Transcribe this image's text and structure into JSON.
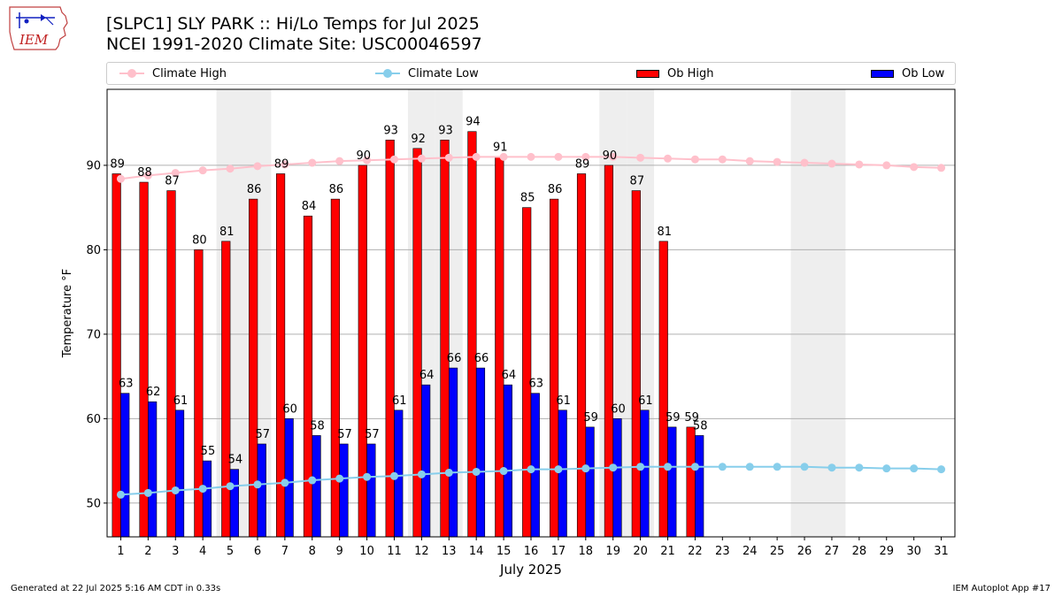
{
  "logo": {
    "text": "IEM"
  },
  "header": {
    "title_line1": "[SLPC1] SLY PARK :: Hi/Lo Temps for Jul 2025",
    "title_line2": "NCEI 1991-2020 Climate Site: USC00046597"
  },
  "colors": {
    "ob_high": "#ff0000",
    "ob_low": "#0000ff",
    "climate_high": "#ffc0cb",
    "climate_low": "#87ceeb",
    "weekend_shade": "#eeeeee",
    "grid": "#b0b0b0"
  },
  "legend": {
    "climate_high": "Climate High",
    "climate_low": "Climate Low",
    "ob_high": "Ob High",
    "ob_low": "Ob Low"
  },
  "footer": {
    "left": "Generated at 22 Jul 2025 5:16 AM CDT in 0.33s",
    "right": "IEM Autoplot App #17"
  },
  "chart_data": {
    "type": "bar",
    "xlabel": "July 2025",
    "ylabel": "Temperature °F",
    "ylim": [
      46,
      99
    ],
    "yticks": [
      50,
      60,
      70,
      80,
      90
    ],
    "grid": "horizontal",
    "legend_position": "top",
    "categories": [
      "1",
      "2",
      "3",
      "4",
      "5",
      "6",
      "7",
      "8",
      "9",
      "10",
      "11",
      "12",
      "13",
      "14",
      "15",
      "16",
      "17",
      "18",
      "19",
      "20",
      "21",
      "22",
      "23",
      "24",
      "25",
      "26",
      "27",
      "28",
      "29",
      "30",
      "31"
    ],
    "shaded_days": [
      5,
      6,
      12,
      13,
      19,
      20,
      26,
      27
    ],
    "series": [
      {
        "name": "Ob High",
        "type": "bar",
        "values": [
          89,
          88,
          87,
          80,
          81,
          86,
          89,
          84,
          86,
          90,
          93,
          92,
          93,
          94,
          91,
          85,
          86,
          89,
          90,
          87,
          81,
          59,
          null,
          null,
          null,
          null,
          null,
          null,
          null,
          null,
          null
        ],
        "labels": [
          "89",
          "88",
          "87",
          "80",
          "81",
          "86",
          "89",
          "84",
          "86",
          "90",
          "93",
          "92",
          "93",
          "94",
          "91",
          "85",
          "86",
          "89",
          "90",
          "87",
          "81",
          "59",
          null,
          null,
          null,
          null,
          null,
          null,
          null,
          null,
          null
        ]
      },
      {
        "name": "Ob Low",
        "type": "bar",
        "values": [
          63,
          62,
          61,
          55,
          54,
          57,
          60,
          58,
          57,
          57,
          61,
          64,
          66,
          66,
          64,
          63,
          61,
          59,
          60,
          61,
          59,
          58,
          null,
          null,
          null,
          null,
          null,
          null,
          null,
          null,
          null
        ],
        "labels": [
          "63",
          "62",
          "61",
          "55",
          "54",
          "57",
          "60",
          "58",
          "57",
          "57",
          "61",
          "64",
          "66",
          "66",
          "64",
          "63",
          "61",
          "59",
          "60",
          "61",
          "59",
          "58",
          null,
          null,
          null,
          null,
          null,
          null,
          null,
          null,
          null
        ]
      },
      {
        "name": "Climate High",
        "type": "line",
        "values": [
          88.4,
          88.8,
          89.1,
          89.4,
          89.6,
          89.9,
          90.1,
          90.3,
          90.5,
          90.6,
          90.7,
          90.8,
          90.9,
          91.0,
          91.0,
          91.0,
          91.0,
          91.0,
          91.0,
          90.9,
          90.8,
          90.7,
          90.7,
          90.5,
          90.4,
          90.3,
          90.2,
          90.1,
          90.0,
          89.8,
          89.7
        ]
      },
      {
        "name": "Climate Low",
        "type": "line",
        "values": [
          51.0,
          51.2,
          51.5,
          51.7,
          52.0,
          52.2,
          52.4,
          52.7,
          52.9,
          53.1,
          53.2,
          53.4,
          53.6,
          53.7,
          53.8,
          54.0,
          54.0,
          54.1,
          54.2,
          54.3,
          54.3,
          54.3,
          54.3,
          54.3,
          54.3,
          54.3,
          54.2,
          54.2,
          54.1,
          54.1,
          54.0
        ]
      }
    ]
  }
}
